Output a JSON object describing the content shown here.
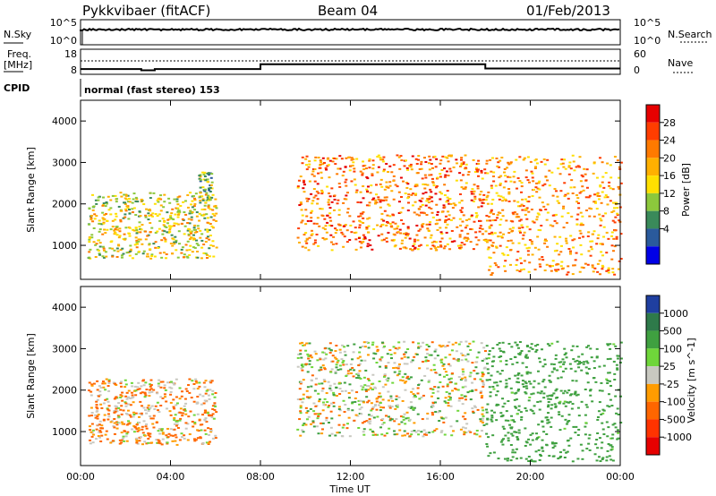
{
  "header": {
    "station": "Pykkvibaer (fitACF)",
    "beam": "Beam 04",
    "date": "01/Feb/2013"
  },
  "params": {
    "nsky_label": "N.Sky",
    "nsearch_label": "N.Search",
    "freq_label_line1": "Freq.",
    "freq_label_line2": "[MHz]",
    "nave_label": "Nave",
    "cpid_label": "CPID",
    "cpid_text": "normal (fast stereo) 153",
    "noise_ticks_left": [
      "10^5",
      "10^0"
    ],
    "noise_ticks_right": [
      "10^5",
      "10^0"
    ],
    "freq_ticks": [
      "18",
      "8"
    ],
    "nave_ticks": [
      "60",
      "0"
    ],
    "freq_steps": [
      {
        "t": 0.0,
        "f": 10.1
      },
      {
        "t": 2.7,
        "f": 9.6
      },
      {
        "t": 3.3,
        "f": 10.1
      },
      {
        "t": 8.0,
        "f": 12.0
      },
      {
        "t": 18.0,
        "f": 10.3
      },
      {
        "t": 24.0,
        "f": 10.3
      }
    ]
  },
  "chart_data": [
    {
      "type": "heatmap",
      "title": "Power",
      "ylabel": "Slant Range [km]",
      "ylim": [
        180,
        4500
      ],
      "yticks": [
        "4000",
        "3000",
        "2000",
        "1000"
      ],
      "colorbar": {
        "label": "Power [dB]",
        "ticks": [
          "28",
          "24",
          "20",
          "16",
          "12",
          "8",
          "4"
        ],
        "colors": [
          "#e60000",
          "#ff3d00",
          "#ff7a00",
          "#ffb000",
          "#ffe000",
          "#8cc83c",
          "#3a8a5a",
          "#2a5a9c",
          "#0000e6"
        ]
      },
      "regions": [
        {
          "t0": 0.3,
          "t1": 6.0,
          "r0": 700,
          "r1": 2300,
          "power": 14
        },
        {
          "t0": 5.2,
          "t1": 5.8,
          "r0": 2100,
          "r1": 2800,
          "power": 10
        },
        {
          "t0": 9.6,
          "t1": 18.0,
          "r0": 900,
          "r1": 3200,
          "power": 22
        },
        {
          "t0": 18.0,
          "t1": 24.0,
          "r0": 300,
          "r1": 3200,
          "power": 20
        }
      ]
    },
    {
      "type": "heatmap",
      "title": "Velocity",
      "ylabel": "Slant Range [km]",
      "ylim": [
        180,
        4500
      ],
      "yticks": [
        "4000",
        "3000",
        "2000",
        "1000"
      ],
      "colorbar": {
        "label": "Velocity [m s^-1]",
        "ticks": [
          "1000",
          "500",
          "100",
          "25",
          "-25",
          "-100",
          "-500",
          "-1000"
        ],
        "colors": [
          "#1f3fa0",
          "#2e7a4a",
          "#3fa040",
          "#6fd63a",
          "#c8c8c0",
          "#ff9c00",
          "#ff6600",
          "#ff3300",
          "#e60000"
        ]
      },
      "regions": [
        {
          "t0": 0.3,
          "t1": 6.0,
          "r0": 700,
          "r1": 2300,
          "velocity": -50
        },
        {
          "t0": 9.6,
          "t1": 18.0,
          "r0": 900,
          "r1": 3200,
          "velocity": 0
        },
        {
          "t0": 18.0,
          "t1": 24.0,
          "r0": 300,
          "r1": 3200,
          "velocity": 150
        }
      ]
    }
  ],
  "xaxis": {
    "label": "Time UT",
    "ticks": [
      "00:00",
      "04:00",
      "08:00",
      "12:00",
      "16:00",
      "20:00",
      "00:00"
    ]
  }
}
